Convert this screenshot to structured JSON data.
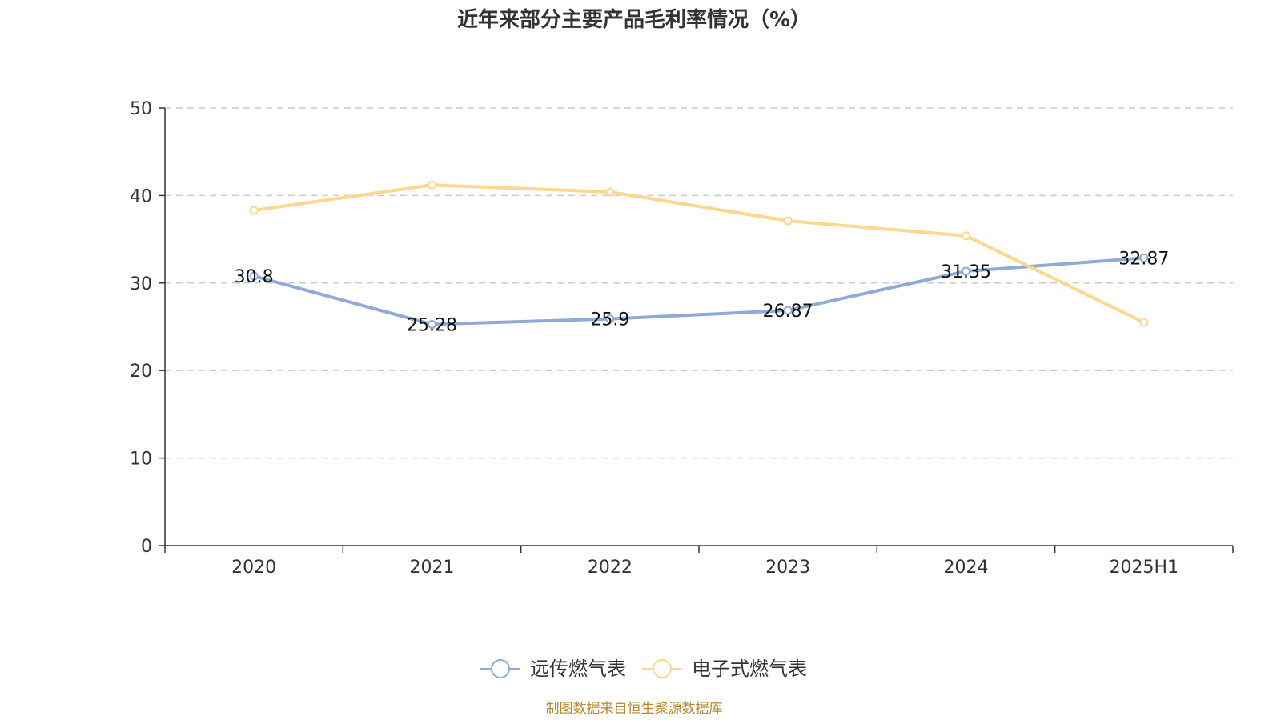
{
  "chart_data": {
    "type": "line",
    "title": "近年来部分主要产品毛利率情况（%）",
    "categories": [
      "2020",
      "2021",
      "2022",
      "2023",
      "2024",
      "2025H1"
    ],
    "ylim": [
      0,
      50
    ],
    "yticks": [
      0,
      10,
      20,
      30,
      40,
      50
    ],
    "grid": true,
    "legend_position": "bottom",
    "series": [
      {
        "name": "远传燃气表",
        "color": "#8eaad6",
        "values": [
          30.8,
          25.28,
          25.9,
          26.87,
          31.35,
          32.87
        ],
        "data_labels": [
          "30.8",
          "25.28",
          "25.9",
          "26.87",
          "31.35",
          "32.87"
        ]
      },
      {
        "name": "电子式燃气表",
        "color": "#fbd88e",
        "values": [
          38.3,
          41.2,
          40.4,
          37.1,
          35.4,
          25.5
        ],
        "data_labels": []
      }
    ],
    "source": "制图数据来自恒生聚源数据库"
  }
}
